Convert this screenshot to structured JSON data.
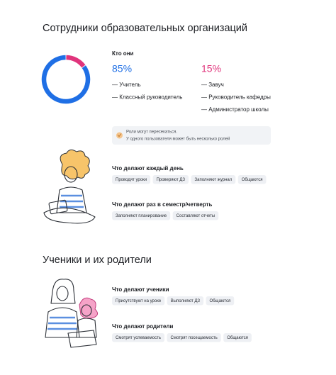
{
  "sections": [
    {
      "title": "Сотрудники образовательных организаций",
      "who": {
        "heading": "Кто они",
        "groups": [
          {
            "share": {
              "value": 85,
              "label": "85%"
            },
            "color": "#1f6fe5",
            "roles": [
              "— Учитель",
              "— Классный руководитель"
            ]
          },
          {
            "share": {
              "value": 15,
              "label": "15%"
            },
            "color": "#e0347c",
            "roles": [
              "— Завуч",
              "— Руководитель кафедры",
              "— Администратор школы"
            ]
          }
        ]
      },
      "note": [
        "Роли могут пересекаться.",
        "У одного пользователя может быть несколько ролей"
      ],
      "activities": [
        {
          "heading": "Что делают каждый день",
          "items": [
            "Проводят уроки",
            "Проверяют ДЗ",
            "Заполняют журнал",
            "Общаются"
          ]
        },
        {
          "heading": "Что делают раз в семестр/четверть",
          "items": [
            "Заполняют планирование",
            "Составляют отчеты"
          ]
        }
      ]
    },
    {
      "title": "Ученики и их родители",
      "activities": [
        {
          "heading": "Что делают ученики",
          "items": [
            "Присутствуют на уроке",
            "Выполняют ДЗ",
            "Общаются"
          ]
        },
        {
          "heading": "Что делают родители",
          "items": [
            "Смотрят успеваемость",
            "Смотрят посещаемость",
            "Общаются"
          ]
        }
      ]
    }
  ]
}
